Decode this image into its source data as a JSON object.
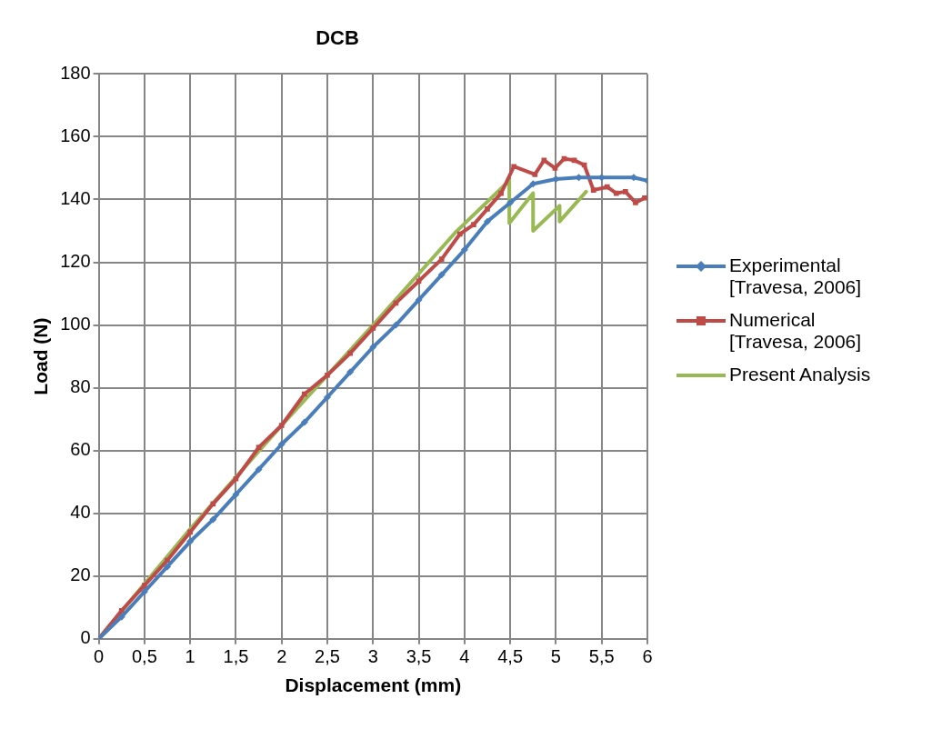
{
  "chart_data": {
    "type": "line",
    "title": "DCB",
    "xlabel": "Displacement (mm)",
    "ylabel": "Load (N)",
    "xlim": [
      0,
      6
    ],
    "xticks": [
      0,
      {
        "value": 0.5,
        "label": "0,5"
      },
      1,
      {
        "value": 1.5,
        "label": "1,5"
      },
      2,
      {
        "value": 2.5,
        "label": "2,5"
      },
      3,
      {
        "value": 3.5,
        "label": "3,5"
      },
      4,
      {
        "value": 4.5,
        "label": "4,5"
      },
      5,
      {
        "value": 5.5,
        "label": "5,5"
      },
      6
    ],
    "ylim": [
      0,
      180
    ],
    "yticks": [
      0,
      20,
      40,
      60,
      80,
      100,
      120,
      140,
      160,
      180
    ],
    "grid": true,
    "legend": "right",
    "line_style": "solid",
    "series": [
      {
        "name": "Experimental [Travesa, 2006]",
        "color": "#4a7ebb",
        "marker": "diamond",
        "x": [
          0,
          0.25,
          0.5,
          0.75,
          1,
          1.25,
          1.5,
          1.75,
          2,
          2.25,
          2.5,
          2.75,
          3,
          3.25,
          3.5,
          3.75,
          4,
          4.25,
          4.5,
          4.75,
          5,
          5.25,
          5.5,
          5.85,
          6
        ],
        "values": [
          0,
          7,
          15,
          23,
          31,
          38,
          46,
          54,
          62,
          69,
          77,
          85,
          93,
          100,
          108,
          116,
          124,
          133,
          139,
          145,
          146.5,
          147,
          147,
          147,
          146
        ]
      },
      {
        "name": "Numerical [Travesa, 2006]",
        "color": "#be4b48",
        "marker": "square",
        "x": [
          0,
          0.25,
          0.5,
          0.75,
          1,
          1.25,
          1.5,
          1.75,
          2,
          2.25,
          2.5,
          2.75,
          3,
          3.25,
          3.5,
          3.75,
          3.95,
          4.1,
          4.25,
          4.4,
          4.54,
          4.77,
          4.87,
          4.99,
          5.09,
          5.2,
          5.31,
          5.41,
          5.56,
          5.66,
          5.76,
          5.87,
          5.97
        ],
        "values": [
          0,
          9,
          17,
          25,
          34,
          43,
          51,
          61,
          68,
          78,
          84,
          91,
          99,
          107,
          114,
          121,
          129,
          132,
          137,
          142,
          150.5,
          148,
          152.5,
          150,
          153,
          152.5,
          151,
          143,
          144,
          142,
          142.5,
          139,
          140.5
        ]
      },
      {
        "name": "Present Analysis",
        "color": "#98b954",
        "marker": "none",
        "x": [
          0,
          1,
          2,
          3,
          3.9,
          4.49,
          4.49,
          4.75,
          4.75,
          5.04,
          5.04,
          5.33
        ],
        "values": [
          0,
          35,
          68,
          100,
          129.5,
          146,
          132.5,
          142,
          130,
          138,
          133,
          142.5
        ]
      }
    ]
  }
}
